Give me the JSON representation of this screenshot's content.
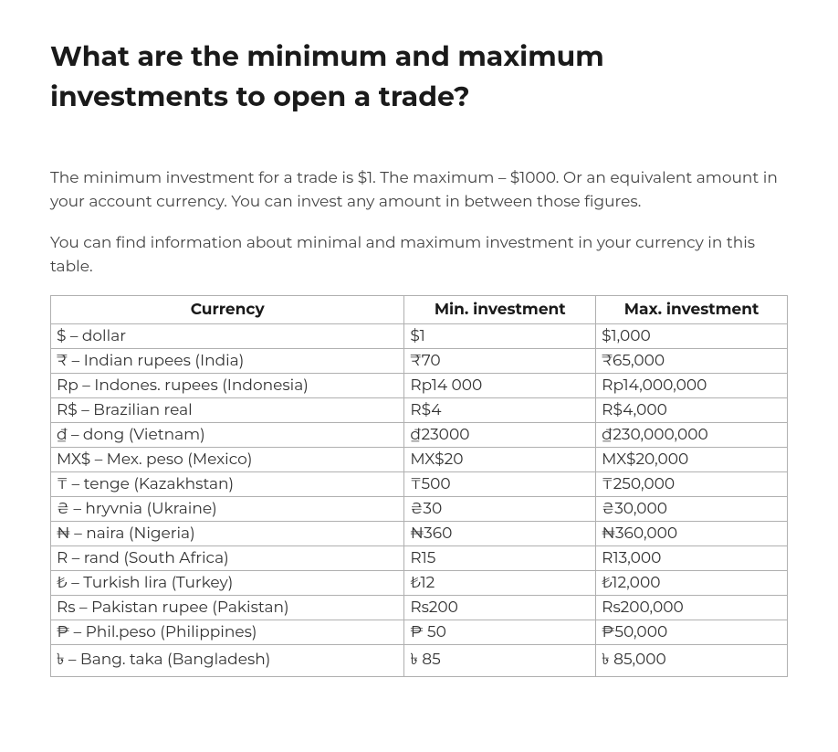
{
  "heading": "What are the minimum and maximum investments to open a trade?",
  "paragraph1": "The minimum investment for a trade is $1. The maximum – $1000. Or an equivalent amount in your account currency. You can invest any amount in between those figures.",
  "paragraph2": "You can find information about minimal and maximum investment in your currency in this table.",
  "table": {
    "columns": [
      "Currency",
      "Min. investment",
      "Max. investment"
    ],
    "rows": [
      [
        "$ – dollar",
        "$1",
        "$1,000"
      ],
      [
        "₹ – Indian rupees (India)",
        "₹70",
        "₹65,000"
      ],
      [
        "Rp – Indones. rupees (Indonesia)",
        "Rp14 000",
        "Rp14,000,000"
      ],
      [
        "R$ – Brazilian real",
        "R$4",
        "R$4,000"
      ],
      [
        "₫ – dong (Vietnam)",
        "₫23000",
        "₫230,000,000"
      ],
      [
        "MX$ – Mex. peso (Mexico)",
        "MX$20",
        "MX$20,000"
      ],
      [
        "₸ – tenge (Kazakhstan)",
        "₸500",
        "₸250,000"
      ],
      [
        "₴ – hryvnia (Ukraine)",
        "₴30",
        "₴30,000"
      ],
      [
        "₦ – naira (Nigeria)",
        "₦360",
        "₦360,000"
      ],
      [
        "R – rand (South Africa)",
        "R15",
        "R13,000"
      ],
      [
        "₺ – Turkish lira (Turkey)",
        "₺12",
        "₺12,000"
      ],
      [
        "Rs – Pakistan rupee (Pakistan)",
        "Rs200",
        "Rs200,000"
      ],
      [
        "₱ – Phil.peso (Philippines)",
        "₱ 50",
        "₱50,000"
      ],
      [
        "৳ – Bang. taka (Bangladesh)",
        "৳ 85",
        "৳ 85,000"
      ]
    ]
  }
}
